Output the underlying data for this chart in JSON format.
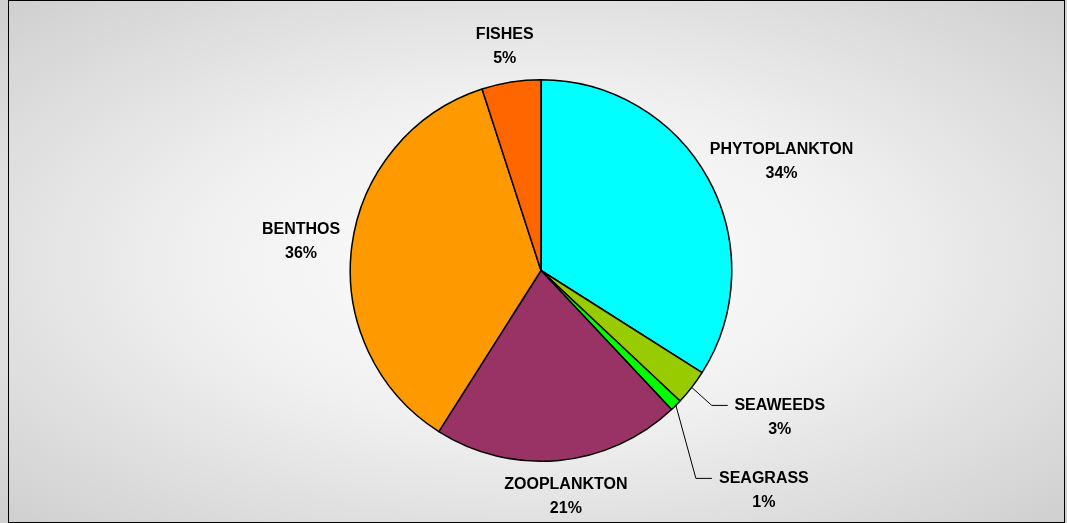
{
  "chart_data": {
    "type": "pie",
    "categories": [
      "PHYTOPLANKTON",
      "SEAWEEDS",
      "SEAGRASS",
      "ZOOPLANKTON",
      "BENTHOS",
      "FISHES"
    ],
    "values": [
      34,
      3,
      1,
      21,
      36,
      5
    ],
    "colors": [
      "#00ffff",
      "#99cc00",
      "#00ff00",
      "#993366",
      "#ff9900",
      "#ff6600"
    ],
    "value_labels": [
      "34%",
      "3%",
      "1%",
      "21%",
      "36%",
      "5%"
    ],
    "legend": false
  }
}
